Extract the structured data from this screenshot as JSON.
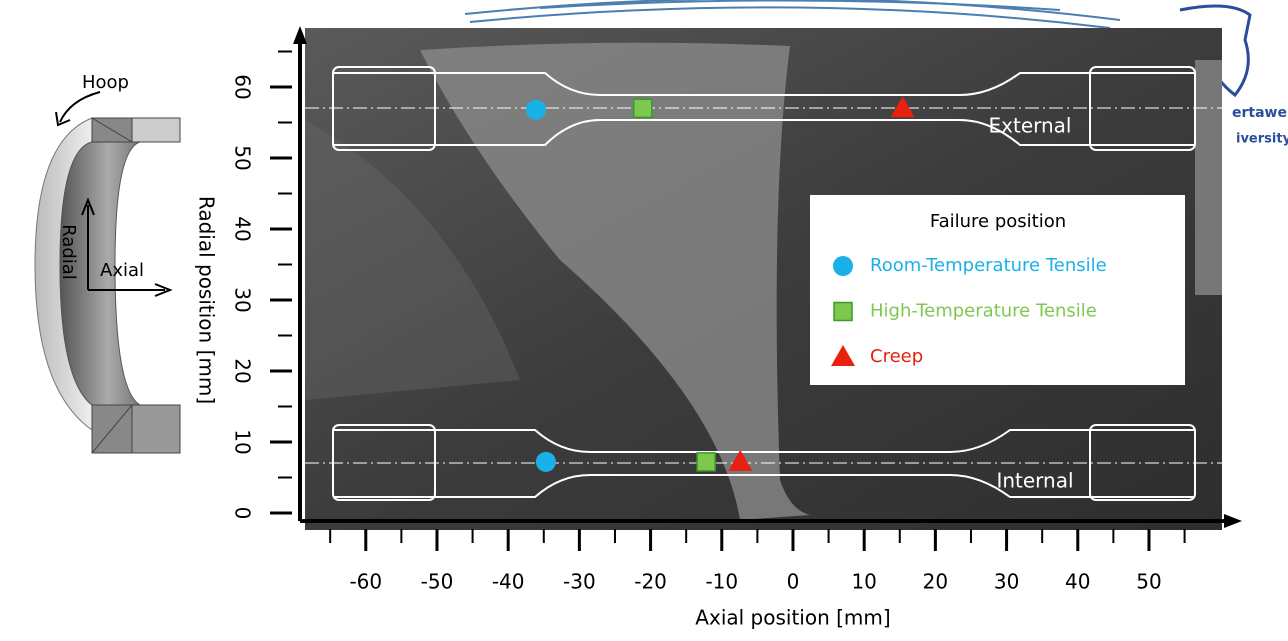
{
  "chart_data": {
    "type": "scatter",
    "x_label": "Axial position [mm]",
    "y_label": "Radial position [mm]",
    "xlim": [
      -69,
      61
    ],
    "ylim": [
      -1,
      68
    ],
    "xticks": [
      -60,
      -50,
      -40,
      -30,
      -20,
      -10,
      0,
      10,
      20,
      30,
      40,
      50
    ],
    "xminorticks": [
      -65,
      -55,
      -45,
      -35,
      -25,
      -15,
      -5,
      5,
      15,
      25,
      35,
      45,
      55
    ],
    "yticks": [
      0,
      10,
      20,
      30,
      40,
      50,
      60
    ],
    "yminorticks": [
      5,
      15,
      25,
      35,
      45,
      55,
      65
    ],
    "legend_title": "Failure position",
    "legend_position": "right",
    "series": [
      {
        "name": "Room-Temperature Tensile",
        "color": "#1ab0e8",
        "marker": "circle",
        "x": [
          -36.1,
          -34.7
        ],
        "values": [
          56.8,
          7.2
        ]
      },
      {
        "name": "High-Temperature Tensile",
        "color": "#7ec850",
        "marker": "square",
        "x": [
          -21.1,
          -12.2
        ],
        "values": [
          57,
          7.2
        ]
      },
      {
        "name": "Creep",
        "color": "#e82010",
        "marker": "triangle",
        "x": [
          15.4,
          -7.4
        ],
        "values": [
          57,
          7.2
        ]
      }
    ],
    "annotations": [
      "External",
      "Internal"
    ]
  },
  "diagram": {
    "hoop": "Hoop",
    "radial": "Radial",
    "axial": "Axial"
  },
  "logo": {
    "line1": "ertawe",
    "line2": "iversity"
  }
}
